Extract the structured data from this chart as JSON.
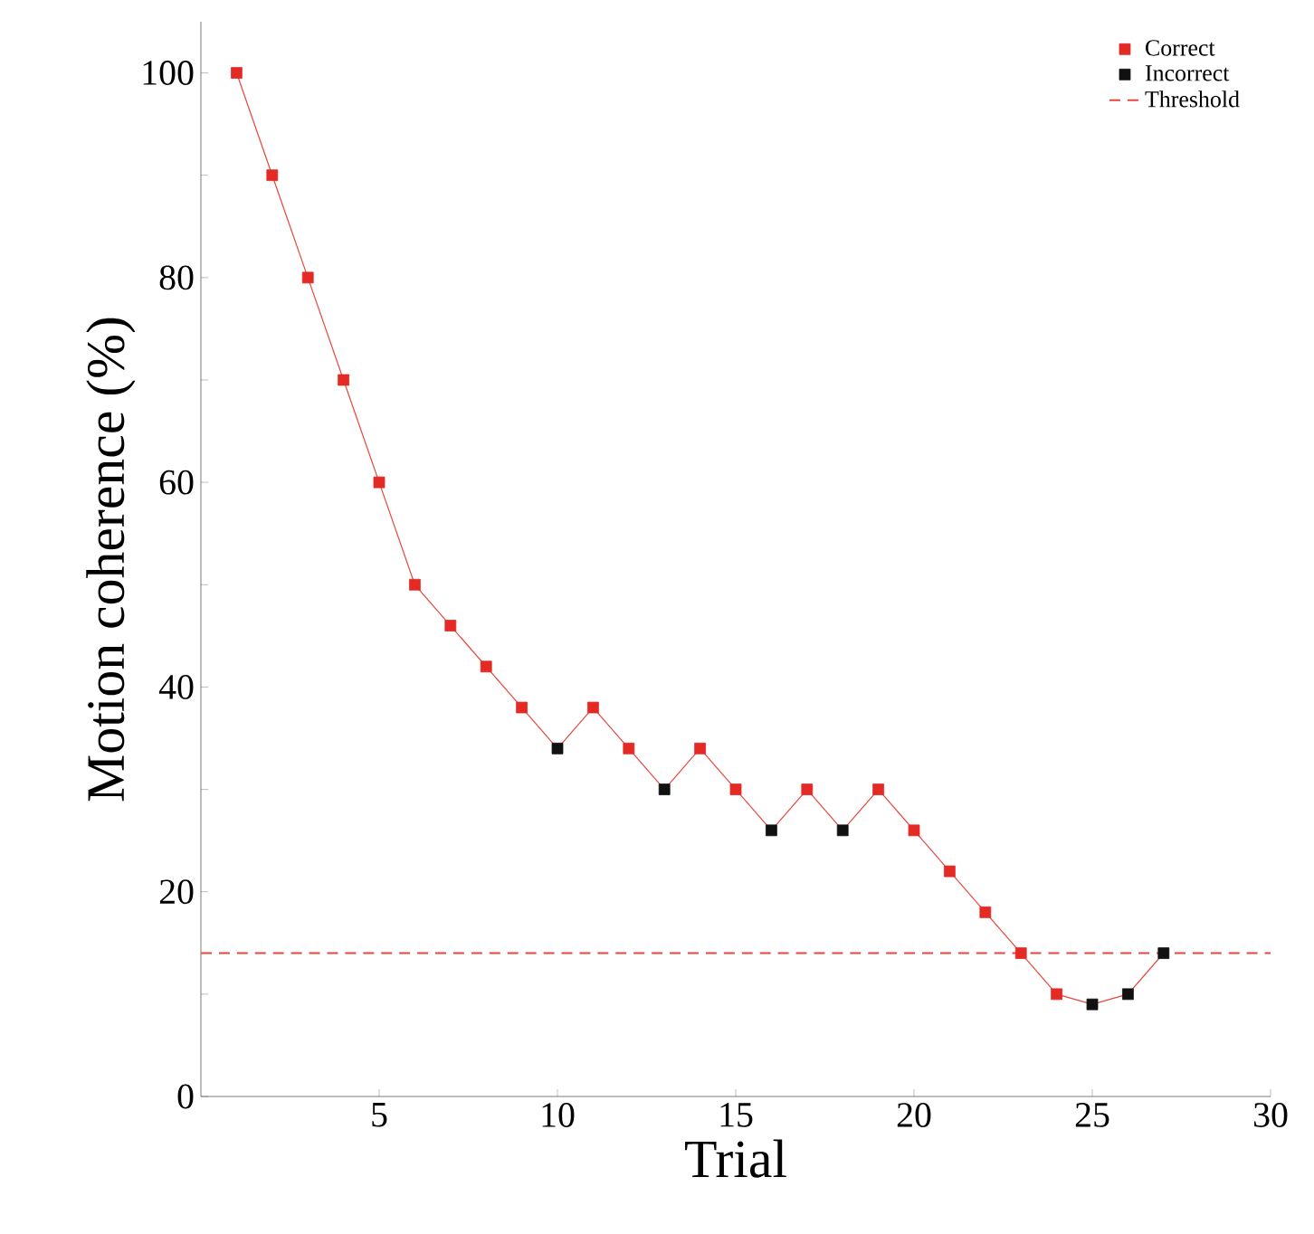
{
  "chart_data": {
    "type": "line",
    "xlabel": "Trial",
    "ylabel": "Motion coherence (%)",
    "xlim": [
      0,
      30
    ],
    "xticks": [
      5,
      10,
      15,
      20,
      25,
      30
    ],
    "ylim": [
      0,
      105
    ],
    "yticks": [
      0,
      {
        "value": 10,
        "label": null
      },
      20,
      {
        "value": 30,
        "label": null
      },
      40,
      {
        "value": 50,
        "label": null
      },
      60,
      {
        "value": 70,
        "label": null
      },
      80,
      {
        "value": 90,
        "label": null
      },
      100
    ],
    "series": [
      {
        "color": "#e8453c",
        "marker": "none",
        "x": [
          1,
          2,
          3,
          4,
          5,
          6,
          7,
          8,
          9,
          10,
          11,
          12,
          13,
          14,
          15,
          16,
          17,
          18,
          19,
          20,
          21,
          22,
          23,
          24,
          25,
          26,
          27
        ],
        "values": [
          100,
          90,
          80,
          70,
          60,
          50,
          46,
          42,
          38,
          34,
          38,
          34,
          30,
          34,
          30,
          26,
          30,
          26,
          30,
          26,
          22,
          18,
          14,
          10,
          9,
          10,
          14
        ]
      },
      {
        "type": "scatter",
        "name": "Correct",
        "color": "#e42a25",
        "marker": "square",
        "x": [
          1,
          2,
          3,
          4,
          5,
          6,
          7,
          8,
          9,
          11,
          12,
          14,
          15,
          17,
          19,
          20,
          21,
          22,
          23,
          24
        ],
        "values": [
          100,
          90,
          80,
          70,
          60,
          50,
          46,
          42,
          38,
          38,
          34,
          34,
          30,
          30,
          30,
          26,
          22,
          18,
          14,
          10
        ]
      },
      {
        "type": "scatter",
        "name": "Incorrect",
        "color": "#111111",
        "marker": "square",
        "x": [
          10,
          13,
          16,
          18,
          25,
          26,
          27
        ],
        "values": [
          34,
          30,
          26,
          26,
          9,
          10,
          14
        ]
      }
    ],
    "ref_lines": [
      {
        "axis": "y",
        "value": 14,
        "label": "Threshold",
        "color": "#e8453c",
        "line_style": "dashed"
      }
    ],
    "legend": "top right",
    "grid": false
  }
}
